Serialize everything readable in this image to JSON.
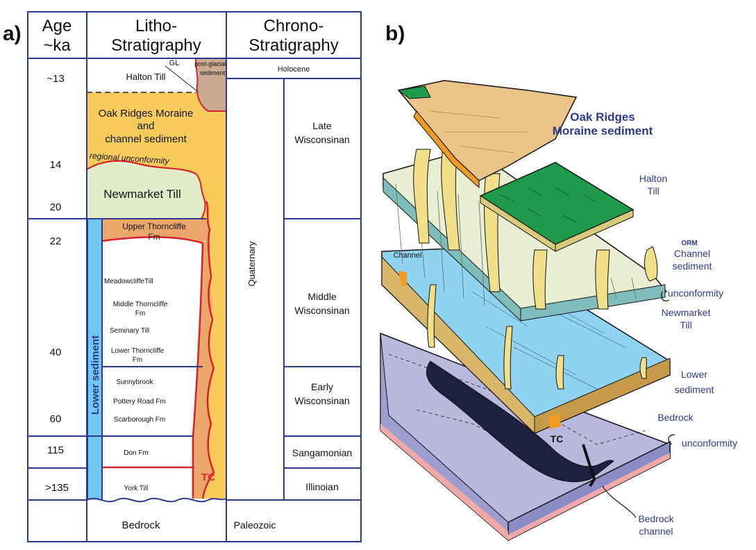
{
  "panel_a": {
    "label": "a)",
    "headers": {
      "age_line1": "Age",
      "age_line2": "~ka",
      "litho_line1": "Litho-",
      "litho_line2": "Stratigraphy",
      "chrono_line1": "Chrono-",
      "chrono_line2": "Stratigraphy"
    },
    "ages": [
      "~13",
      "14",
      "20",
      "22",
      "40",
      "60",
      "115",
      ">135"
    ],
    "litho_units": {
      "gl": "GL",
      "postglacial_line1": "post-glacial",
      "postglacial_line2": "sediment",
      "halton_till": "Halton Till",
      "orm_line1": "Oak Ridges Moraine",
      "orm_line2": "and",
      "orm_line3": "channel sediment",
      "unconformity": "regional unconformity",
      "newmarket_till": "Newmarket Till",
      "upper_thorncliffe_line1": "Upper Thorncliffe",
      "upper_thorncliffe_line2": "Fm",
      "meadowcliffe_till": "MeadowcliffeTill",
      "middle_thorncliffe_line1": "Middle Thorncliffe",
      "middle_thorncliffe_line2": "Fm",
      "seminary_till": "Seminary Till",
      "lower_thorncliffe_line1": "Lower Thorncliffe",
      "lower_thorncliffe_line2": "Fm",
      "sunnybrook": "Sunnybrook",
      "pottery_road": "Pottery Road Fm",
      "scarborough": "Scarborough Fm",
      "don": "Don Fm",
      "york_till": "York Till",
      "lower_sediment": "Lower sediment",
      "tc": "TC",
      "bedrock": "Bedrock"
    },
    "chrono_units": {
      "holocene": "Holocene",
      "quaternary": "Quaternary",
      "late_line1": "Late",
      "late_line2": "Wisconsinan",
      "middle_line1": "Middle",
      "middle_line2": "Wisconsinan",
      "early_line1": "Early",
      "early_line2": "Wisconsinan",
      "sangamonian": "Sangamonian",
      "illinoian": "Illinoian",
      "paleozoic": "Paleozoic"
    }
  },
  "panel_b": {
    "label": "b)",
    "orm_line1": "Oak Ridges",
    "orm_line2": "Moraine sediment",
    "halton_line1": "Halton",
    "halton_line2": "Till",
    "orm_small": "ORM",
    "channel_sed_line1": "Channel",
    "channel_sed_line2": "sediment",
    "unconformity_upper": "unconformity",
    "newmarket_line1": "Newmarket",
    "newmarket_line2": "Till",
    "channel": "Channel",
    "lower_sed_line1": "Lower",
    "lower_sed_line2": "sediment",
    "bedrock": "Bedrock",
    "unconformity_lower": "unconformity",
    "tc": "TC",
    "bedrock_channel_line1": "Bedrock",
    "bedrock_channel_line2": "channel"
  },
  "colors": {
    "frame_blue": "#2b3990",
    "orm_yellow": "#f7cc5a",
    "thorncliffe_orange": "#eba66b",
    "newmarket_green": "#e1ecc9",
    "postglacial_tan": "#c9a98f",
    "lower_sed_blue": "#72c7ee",
    "tc_red": "#e8232a",
    "halton_green": "#1f9a4a",
    "lower_block_blue": "#8fd3f0",
    "bedrock_lavender": "#b8b9dd",
    "label_blue": "#2b3990"
  }
}
